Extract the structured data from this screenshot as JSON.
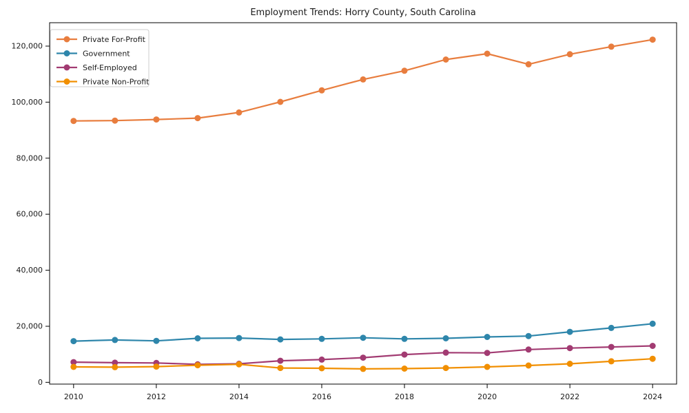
{
  "chart_data": {
    "type": "line",
    "title": "Employment Trends: Horry County, South Carolina",
    "x": [
      2010,
      2011,
      2012,
      2013,
      2014,
      2015,
      2016,
      2017,
      2018,
      2019,
      2020,
      2021,
      2022,
      2023,
      2024
    ],
    "series": [
      {
        "name": "Private For-Profit",
        "color": "#E87D3E",
        "values": [
          93300,
          93400,
          93800,
          94300,
          96300,
          100100,
          104200,
          108100,
          111200,
          115200,
          117300,
          113500,
          117100,
          119800,
          122300
        ]
      },
      {
        "name": "Government",
        "color": "#2E86AB",
        "values": [
          14700,
          15100,
          14800,
          15700,
          15800,
          15300,
          15500,
          15900,
          15500,
          15700,
          16200,
          16500,
          18000,
          19400,
          20900
        ]
      },
      {
        "name": "Self-Employed",
        "color": "#A23B72",
        "values": [
          7200,
          7000,
          6900,
          6400,
          6600,
          7700,
          8100,
          8800,
          9900,
          10600,
          10500,
          11700,
          12200,
          12600,
          13000
        ]
      },
      {
        "name": "Private Non-Profit",
        "color": "#F18F01",
        "values": [
          5500,
          5400,
          5600,
          6100,
          6400,
          5100,
          5000,
          4800,
          4900,
          5100,
          5500,
          6000,
          6600,
          7500,
          8400
        ]
      }
    ],
    "xlabel": "",
    "ylabel": "",
    "xlim": [
      2009.42,
      2024.58
    ],
    "ylim": [
      -640,
      128350
    ],
    "x_ticks": [
      {
        "value": 2010,
        "label": "2010"
      },
      {
        "value": 2012,
        "label": "2012"
      },
      {
        "value": 2014,
        "label": "2014"
      },
      {
        "value": 2016,
        "label": "2016"
      },
      {
        "value": 2018,
        "label": "2018"
      },
      {
        "value": 2020,
        "label": "2020"
      },
      {
        "value": 2022,
        "label": "2022"
      },
      {
        "value": 2024,
        "label": "2024"
      }
    ],
    "y_ticks": [
      {
        "value": 0,
        "label": "0"
      },
      {
        "value": 20000,
        "label": "20,000"
      },
      {
        "value": 40000,
        "label": "40,000"
      },
      {
        "value": 60000,
        "label": "60,000"
      },
      {
        "value": 80000,
        "label": "80,000"
      },
      {
        "value": 100000,
        "label": "100,000"
      },
      {
        "value": 120000,
        "label": "120,000"
      }
    ],
    "grid": false,
    "legend_position": "upper-left",
    "marker": "circle",
    "frame_color": "#000000",
    "tick_label_color": "#1a1a1a",
    "legend_border_color": "#cccccc"
  }
}
